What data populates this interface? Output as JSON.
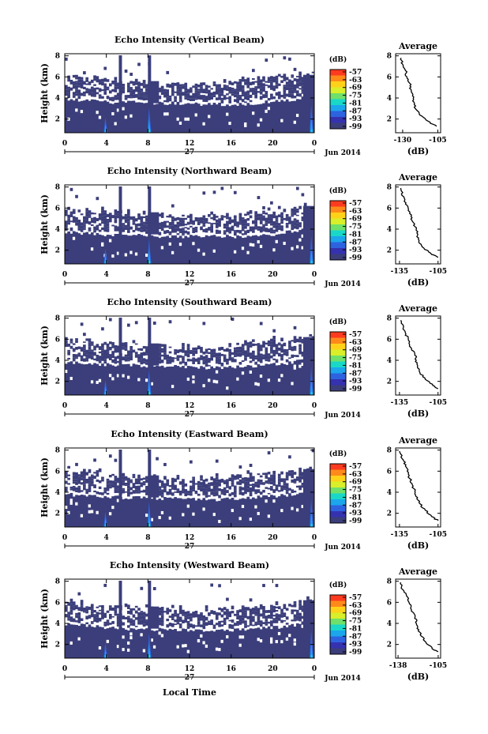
{
  "figure": {
    "footer_xlabel": "Local Time"
  },
  "colorbar": {
    "unit": "(dB)",
    "ticks": [
      "-57",
      "-63",
      "-69",
      "-75",
      "-81",
      "-87",
      "-93",
      "-99"
    ],
    "colors": [
      "#ff3b1f",
      "#ff8a1a",
      "#ffd21a",
      "#d8ef2a",
      "#6fe06a",
      "#19d8c8",
      "#1ca6ec",
      "#2e63e0",
      "#3532b0",
      "#3b3e7a"
    ]
  },
  "chart_data": [
    {
      "type": "heatmap",
      "title": "Echo Intensity (Vertical Beam)",
      "ylabel": "Height (km)",
      "xticks": [
        "0",
        "4",
        "8",
        "12",
        "16",
        "20",
        "0"
      ],
      "date_label": "27",
      "month_label": "Jun 2014",
      "ylim": [
        0.7,
        8.2
      ],
      "yticks": [
        "8",
        "6",
        "4",
        "2"
      ],
      "bottom_km": [
        3.9,
        3.8,
        3.6,
        3.6,
        3.6,
        3.5,
        3.5,
        3.4,
        3.4,
        3.4,
        3.5,
        3.7,
        3.8,
        4.2
      ],
      "top_km": [
        6.2,
        5.9,
        5.7,
        5.6,
        5.5,
        5.4,
        5.3,
        5.2,
        5.3,
        5.5,
        5.8,
        6.0,
        6.1,
        6.3
      ],
      "profile": {
        "title": "Average",
        "xlabel": "(dB)",
        "xticks": [
          "-130",
          "-105"
        ],
        "yticks": [
          "8",
          "6",
          "4",
          "2"
        ],
        "xlim": [
          -135,
          -103
        ],
        "points": [
          [
            -131,
            7.8
          ],
          [
            -130,
            7.2
          ],
          [
            -128,
            6.6
          ],
          [
            -127,
            6.0
          ],
          [
            -125,
            5.4
          ],
          [
            -124,
            4.8
          ],
          [
            -123,
            4.2
          ],
          [
            -122,
            3.6
          ],
          [
            -121,
            3.0
          ],
          [
            -118,
            2.4
          ],
          [
            -112,
            1.8
          ],
          [
            -106,
            1.3
          ]
        ]
      }
    },
    {
      "type": "heatmap",
      "title": "Echo Intensity (Northward Beam)",
      "ylabel": "Height (km)",
      "xticks": [
        "0",
        "4",
        "8",
        "12",
        "16",
        "20",
        "0"
      ],
      "date_label": "27",
      "month_label": "Jun 2014",
      "ylim": [
        0.7,
        8.2
      ],
      "yticks": [
        "8",
        "6",
        "4",
        "2"
      ],
      "bottom_km": [
        3.7,
        3.6,
        3.5,
        3.4,
        3.4,
        3.3,
        3.3,
        3.3,
        3.3,
        3.3,
        3.4,
        3.5,
        3.8,
        4.2
      ],
      "top_km": [
        5.9,
        5.7,
        5.6,
        5.4,
        5.3,
        5.2,
        5.1,
        5.1,
        5.2,
        5.3,
        5.5,
        5.7,
        5.9,
        6.2
      ],
      "profile": {
        "title": "Average",
        "xlabel": "(dB)",
        "xticks": [
          "-135",
          "-105"
        ],
        "yticks": [
          "8",
          "6",
          "4",
          "2"
        ],
        "xlim": [
          -138,
          -103
        ],
        "points": [
          [
            -134,
            7.9
          ],
          [
            -133,
            7.2
          ],
          [
            -130,
            6.5
          ],
          [
            -128,
            5.9
          ],
          [
            -126,
            5.2
          ],
          [
            -124,
            4.6
          ],
          [
            -122,
            4.0
          ],
          [
            -121,
            3.4
          ],
          [
            -120,
            2.8
          ],
          [
            -116,
            2.2
          ],
          [
            -110,
            1.6
          ],
          [
            -105,
            1.3
          ]
        ]
      }
    },
    {
      "type": "heatmap",
      "title": "Echo Intensity (Southward Beam)",
      "ylabel": "Height (km)",
      "xticks": [
        "0",
        "4",
        "8",
        "12",
        "16",
        "20",
        "0"
      ],
      "date_label": "27",
      "month_label": "Jun 2014",
      "ylim": [
        0.7,
        8.2
      ],
      "yticks": [
        "8",
        "6",
        "4",
        "2"
      ],
      "bottom_km": [
        3.8,
        3.7,
        3.6,
        3.5,
        3.5,
        3.4,
        3.4,
        3.3,
        3.3,
        3.4,
        3.5,
        3.6,
        3.8,
        4.3
      ],
      "top_km": [
        6.0,
        5.8,
        5.7,
        5.5,
        5.4,
        5.3,
        5.2,
        5.2,
        5.3,
        5.4,
        5.6,
        5.8,
        6.0,
        6.4
      ],
      "profile": {
        "title": "Average",
        "xlabel": "(dB)",
        "xticks": [
          "-135",
          "-105"
        ],
        "yticks": [
          "8",
          "6",
          "4",
          "2"
        ],
        "xlim": [
          -138,
          -103
        ],
        "points": [
          [
            -134,
            7.8
          ],
          [
            -132,
            7.1
          ],
          [
            -130,
            6.5
          ],
          [
            -128,
            5.9
          ],
          [
            -126,
            5.2
          ],
          [
            -123,
            4.6
          ],
          [
            -122,
            4.0
          ],
          [
            -121,
            3.4
          ],
          [
            -119,
            2.8
          ],
          [
            -115,
            2.2
          ],
          [
            -109,
            1.6
          ],
          [
            -105,
            1.3
          ]
        ]
      }
    },
    {
      "type": "heatmap",
      "title": "Echo Intensity (Eastward Beam)",
      "ylabel": "Height (km)",
      "xticks": [
        "0",
        "4",
        "8",
        "12",
        "16",
        "20",
        "0"
      ],
      "date_label": "27",
      "month_label": "Jun 2014",
      "ylim": [
        0.7,
        8.2
      ],
      "yticks": [
        "8",
        "6",
        "4",
        "2"
      ],
      "bottom_km": [
        3.8,
        3.7,
        3.6,
        3.5,
        3.5,
        3.4,
        3.4,
        3.3,
        3.3,
        3.4,
        3.5,
        3.6,
        3.8,
        4.2
      ],
      "top_km": [
        6.1,
        5.9,
        5.7,
        5.6,
        5.5,
        5.4,
        5.3,
        5.2,
        5.3,
        5.4,
        5.6,
        5.8,
        6.0,
        6.3
      ],
      "profile": {
        "title": "Average",
        "xlabel": "(dB)",
        "xticks": [
          "-135",
          "-105"
        ],
        "yticks": [
          "8",
          "6",
          "4",
          "2"
        ],
        "xlim": [
          -138,
          -103
        ],
        "points": [
          [
            -135,
            7.9
          ],
          [
            -133,
            7.2
          ],
          [
            -130,
            6.6
          ],
          [
            -129,
            6.0
          ],
          [
            -127,
            5.3
          ],
          [
            -125,
            4.7
          ],
          [
            -123,
            4.1
          ],
          [
            -121,
            3.5
          ],
          [
            -119,
            2.9
          ],
          [
            -115,
            2.3
          ],
          [
            -110,
            1.7
          ],
          [
            -105,
            1.3
          ]
        ]
      }
    },
    {
      "type": "heatmap",
      "title": "Echo Intensity (Westward Beam)",
      "ylabel": "Height (km)",
      "xticks": [
        "0",
        "4",
        "8",
        "12",
        "16",
        "20",
        "0"
      ],
      "date_label": "27",
      "month_label": "Jun 2014",
      "ylim": [
        0.7,
        8.2
      ],
      "yticks": [
        "8",
        "6",
        "4",
        "2"
      ],
      "bottom_km": [
        3.9,
        3.8,
        3.6,
        3.5,
        3.5,
        3.4,
        3.4,
        3.3,
        3.3,
        3.4,
        3.5,
        3.6,
        3.8,
        4.3
      ],
      "top_km": [
        6.0,
        5.8,
        5.6,
        5.5,
        5.4,
        5.3,
        5.2,
        5.1,
        5.2,
        5.3,
        5.5,
        5.7,
        5.9,
        6.3
      ],
      "profile": {
        "title": "Average",
        "xlabel": "(dB)",
        "xticks": [
          "-138",
          "-105"
        ],
        "yticks": [
          "8",
          "6",
          "4",
          "2"
        ],
        "xlim": [
          -140,
          -103
        ],
        "points": [
          [
            -136,
            7.9
          ],
          [
            -134,
            7.2
          ],
          [
            -131,
            6.6
          ],
          [
            -129,
            6.0
          ],
          [
            -127,
            5.3
          ],
          [
            -124,
            4.6
          ],
          [
            -123,
            4.0
          ],
          [
            -121,
            3.4
          ],
          [
            -119,
            2.8
          ],
          [
            -115,
            2.2
          ],
          [
            -110,
            1.6
          ],
          [
            -105,
            1.3
          ]
        ]
      }
    }
  ]
}
